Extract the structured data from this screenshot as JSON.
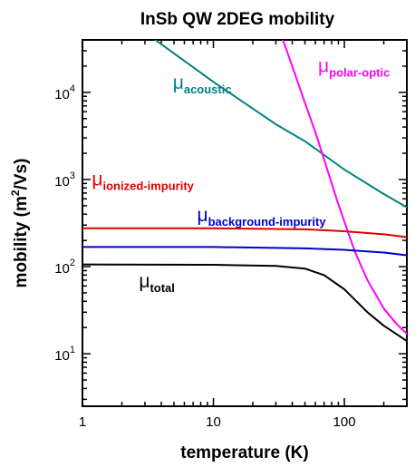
{
  "chart_data": {
    "type": "line",
    "title": "InSb QW 2DEG mobility",
    "xlabel": "temperature (K)",
    "ylabel_main": "mobility (m",
    "ylabel_sup": "2",
    "ylabel_tail": "/Vs)",
    "x_scale": "log",
    "y_scale": "log",
    "xlim": [
      1,
      300
    ],
    "ylim": [
      2.5,
      40000
    ],
    "x_ticks": [
      {
        "value": 1,
        "label": "1"
      },
      {
        "value": 10,
        "label": "10"
      },
      {
        "value": 100,
        "label": "100"
      }
    ],
    "y_ticks": [
      {
        "value": 10,
        "label": "10",
        "exp": "1"
      },
      {
        "value": 100,
        "label": "10",
        "exp": "2"
      },
      {
        "value": 1000,
        "label": "10",
        "exp": "3"
      },
      {
        "value": 10000,
        "label": "10",
        "exp": "4"
      }
    ],
    "grid": false,
    "series": [
      {
        "name": "acoustic",
        "symbol": "μ",
        "color": "#008080",
        "label_at": [
          4.9,
          11000
        ],
        "x": [
          3.6,
          10,
          30,
          50,
          100,
          200,
          300
        ],
        "y": [
          40000,
          13200,
          4300,
          2750,
          1300,
          680,
          480
        ]
      },
      {
        "name": "polar-optic",
        "symbol": "μ",
        "color": "#ff00ff",
        "label_at": [
          63,
          17000
        ],
        "x": [
          34,
          40,
          50,
          60,
          70,
          80,
          90,
          100,
          120,
          150,
          200,
          250,
          300
        ],
        "y": [
          40000,
          20000,
          7600,
          3500,
          1700,
          900,
          520,
          330,
          150,
          70,
          33,
          22,
          17
        ]
      },
      {
        "name": "ionized-impurity",
        "symbol": "μ",
        "color": "#dd0000",
        "label_at": [
          1.18,
          850
        ],
        "x": [
          1,
          10,
          50,
          100,
          200,
          300
        ],
        "y": [
          275,
          275,
          268,
          255,
          235,
          218
        ]
      },
      {
        "name": "background-impurity",
        "symbol": "μ",
        "color": "#0000cc",
        "label_at": [
          7.5,
          330
        ],
        "x": [
          1,
          10,
          50,
          100,
          200,
          300
        ],
        "y": [
          168,
          168,
          162,
          156,
          145,
          135
        ]
      },
      {
        "name": "total",
        "symbol": "μ",
        "color": "#000000",
        "label_at": [
          2.7,
          58
        ],
        "x": [
          1,
          10,
          30,
          50,
          70,
          100,
          150,
          200,
          300
        ],
        "y": [
          106,
          105,
          102,
          95,
          80,
          55,
          30,
          21,
          14
        ]
      }
    ]
  }
}
